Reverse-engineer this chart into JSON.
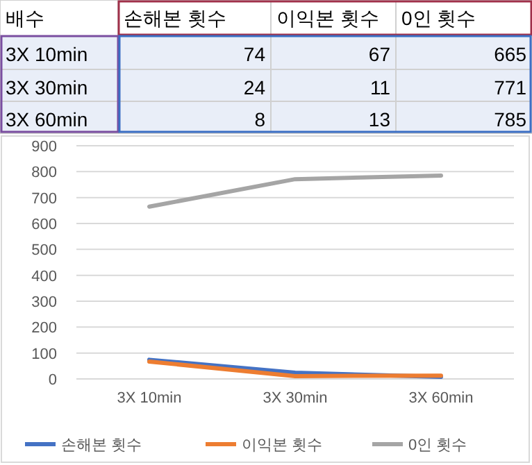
{
  "chart_data": [
    {
      "type": "other",
      "annotations": [
        "배수",
        "손해본 횟수",
        "이익본 횟수",
        "0인 횟수",
        "3X 10min",
        "74",
        "67",
        "665",
        "3X 30min",
        "24",
        "11",
        "771",
        "3X 60min",
        "8",
        "13",
        "785"
      ]
    },
    {
      "type": "line",
      "categories": [
        "3X 10min",
        "3X 30min",
        "3X 60min"
      ],
      "series": [
        {
          "name": "손해본 횟수",
          "color": "#4472c4",
          "values": [
            74,
            24,
            8
          ]
        },
        {
          "name": "이익본 횟수",
          "color": "#ed7d31",
          "values": [
            67,
            11,
            13
          ]
        },
        {
          "name": "0인 횟수",
          "color": "#a5a5a5",
          "values": [
            665,
            771,
            785
          ]
        }
      ],
      "ylim": [
        0,
        900
      ],
      "yticks": [
        0,
        100,
        200,
        300,
        400,
        500,
        600,
        700,
        800,
        900
      ],
      "grid": "y",
      "legend": "bottom",
      "marker": "none",
      "line_style": "solid"
    }
  ]
}
